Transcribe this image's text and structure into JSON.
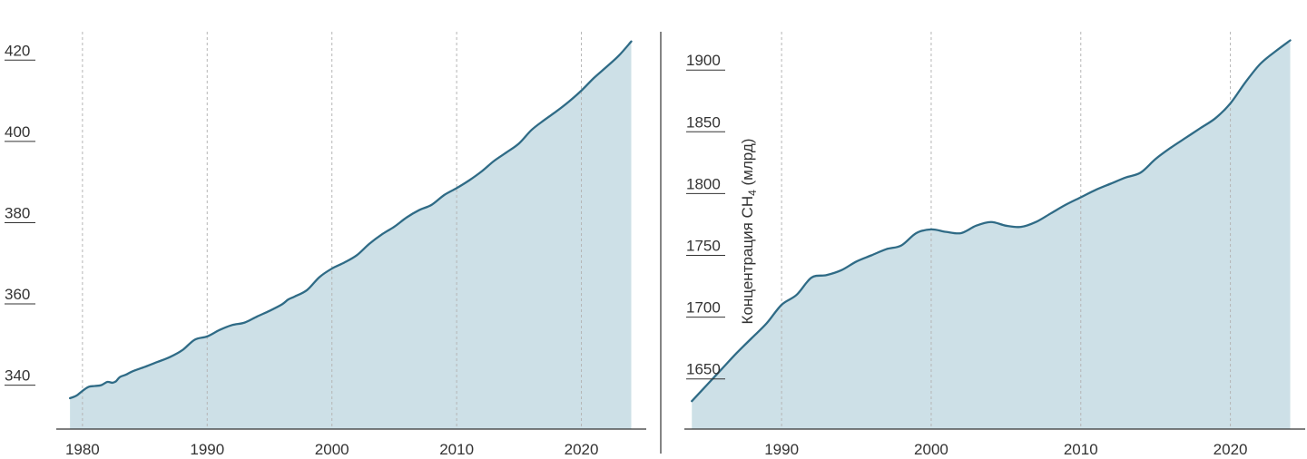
{
  "colors": {
    "line": "#2f6b86",
    "fill": "#cde0e7",
    "grid": "#b5b5b5",
    "axis": "#333333",
    "text": "#333333"
  },
  "chart_data": [
    {
      "type": "area",
      "title": "",
      "xlabel": "",
      "ylabel": "",
      "xlim": [
        1977.9,
        2025.2
      ],
      "ylim": [
        329.2,
        425.2
      ],
      "x_ticks": [
        1980,
        1990,
        2000,
        2010,
        2020
      ],
      "x_tick_labels": [
        "1980",
        "1990",
        "2000",
        "2010",
        "2020"
      ],
      "y_ticks": [
        340,
        360,
        380,
        400,
        420
      ],
      "y_tick_labels": [
        "340",
        "360",
        "380",
        "400",
        "420"
      ],
      "grid": "vertical dashed",
      "series": [
        {
          "x": [
            1979,
            1979.5,
            1980,
            1980.5,
            1981,
            1981.5,
            1982,
            1982.4,
            1982.7,
            1983,
            1983.5,
            1984,
            1985,
            1986,
            1987,
            1988,
            1989,
            1990,
            1991,
            1992,
            1993,
            1994,
            1995,
            1996,
            1996.5,
            1997,
            1998,
            1999,
            2000,
            2001,
            2002,
            2003,
            2004,
            2005,
            2006,
            2007,
            2008,
            2009,
            2010,
            2011,
            2012,
            2013,
            2014,
            2015,
            2016,
            2017,
            2018,
            2019,
            2020,
            2021,
            2022,
            2023,
            2024
          ],
          "values": [
            336.8,
            337.4,
            338.6,
            339.6,
            339.8,
            340.0,
            340.8,
            340.6,
            341.0,
            342.0,
            342.6,
            343.4,
            344.5,
            345.7,
            346.9,
            348.6,
            351.2,
            352.0,
            353.6,
            354.8,
            355.4,
            356.9,
            358.3,
            359.9,
            361.1,
            361.8,
            363.4,
            366.6,
            368.7,
            370.2,
            372.0,
            374.8,
            377.1,
            379.0,
            381.3,
            383.1,
            384.4,
            386.8,
            388.5,
            390.4,
            392.6,
            395.2,
            397.3,
            399.5,
            402.8,
            405.2,
            407.4,
            409.8,
            412.5,
            415.6,
            418.3,
            421.1,
            424.6
          ]
        }
      ]
    },
    {
      "type": "area",
      "title": "",
      "xlabel": "",
      "ylabel": "Концентрация CH₄ (млрд)",
      "ylabel_main": "Концентрация  CH",
      "ylabel_sub": "4",
      "ylabel_unit": " (млрд)",
      "xlim": [
        1983.5,
        2025.0
      ],
      "ylim": [
        1609.4,
        1925.1
      ],
      "x_ticks": [
        1990,
        2000,
        2010,
        2020
      ],
      "x_tick_labels": [
        "1990",
        "2000",
        "2010",
        "2020"
      ],
      "y_ticks": [
        1650,
        1700,
        1750,
        1800,
        1850,
        1900
      ],
      "y_tick_labels": [
        "1650",
        "1700",
        "1750",
        "1800",
        "1850",
        "1900"
      ],
      "grid": "vertical dashed",
      "series": [
        {
          "x": [
            1984,
            1985,
            1986,
            1987,
            1988,
            1989,
            1990,
            1991,
            1992,
            1993,
            1994,
            1995,
            1996,
            1997,
            1998,
            1999,
            2000,
            2001,
            2002,
            2003,
            2004,
            2005,
            2006,
            2007,
            2008,
            2009,
            2010,
            2011,
            2012,
            2013,
            2014,
            2015,
            2016,
            2017,
            2018,
            2019,
            2020,
            2021,
            2022,
            2023,
            2024
          ],
          "values": [
            1632,
            1645,
            1658,
            1671,
            1683,
            1695,
            1710,
            1718,
            1732,
            1734,
            1738,
            1745,
            1750,
            1755,
            1758,
            1768,
            1771,
            1769,
            1768,
            1774,
            1777,
            1774,
            1773,
            1777,
            1784,
            1791,
            1797,
            1803,
            1808,
            1813,
            1817,
            1828,
            1837,
            1845,
            1853,
            1861,
            1873,
            1890,
            1905,
            1915,
            1924
          ]
        }
      ]
    }
  ]
}
